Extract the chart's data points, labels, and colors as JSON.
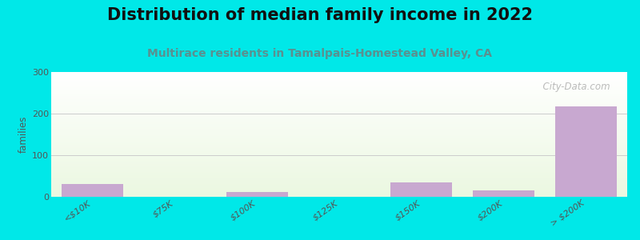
{
  "title": "Distribution of median family income in 2022",
  "subtitle": "Multirace residents in Tamalpais-Homestead Valley, CA",
  "categories": [
    "<$10K",
    "$75K",
    "$100K",
    "$125K",
    "$150K",
    "$200K",
    "> $200K"
  ],
  "values": [
    30,
    0,
    12,
    0,
    35,
    15,
    218
  ],
  "bar_color": "#c8a8d0",
  "background_color": "#00e8e8",
  "ylabel": "families",
  "ylim": [
    0,
    300
  ],
  "yticks": [
    0,
    100,
    200,
    300
  ],
  "grid_color": "#cccccc",
  "title_fontsize": 15,
  "subtitle_fontsize": 10,
  "subtitle_color": "#5a9090",
  "watermark": "  City-Data.com"
}
